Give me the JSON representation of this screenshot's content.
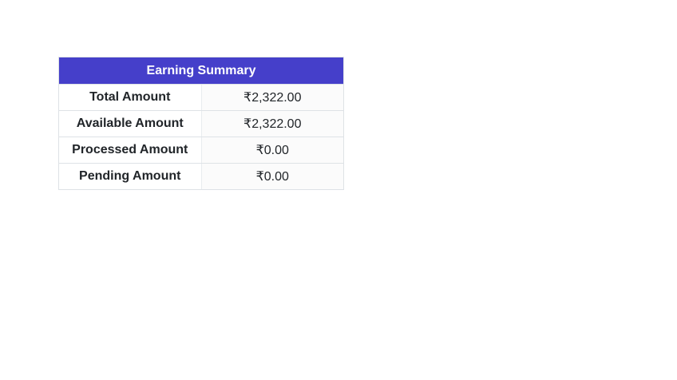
{
  "page": {
    "background_color": "#ffffff"
  },
  "earning_summary": {
    "title": "Earning Summary",
    "colors": {
      "header_background": "#453fca",
      "header_text": "#ffffff",
      "border": "#dee2e6",
      "row_text": "#212529",
      "value_column_background": "#fbfbfb"
    },
    "rows": [
      {
        "label": "Total Amount",
        "value": "₹2,322.00"
      },
      {
        "label": "Available Amount",
        "value": "₹2,322.00"
      },
      {
        "label": "Processed Amount",
        "value": "₹0.00"
      },
      {
        "label": "Pending Amount",
        "value": "₹0.00"
      }
    ]
  }
}
